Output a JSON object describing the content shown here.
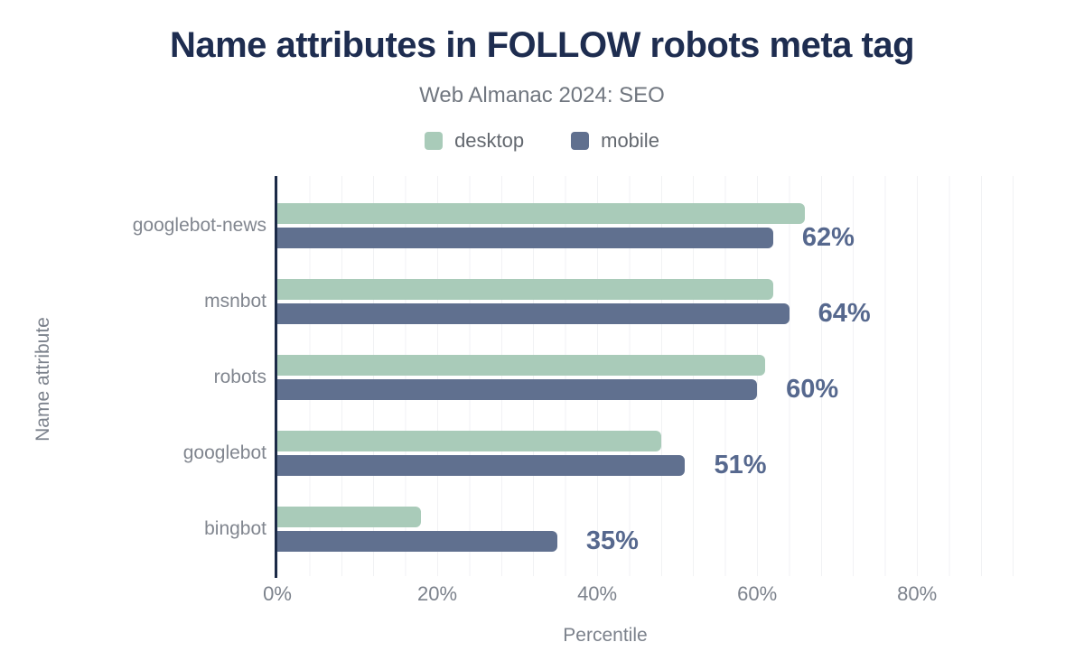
{
  "header": {
    "title": "Name attributes in FOLLOW robots meta tag",
    "subtitle": "Web Almanac 2024: SEO"
  },
  "chart_data": {
    "type": "bar",
    "orientation": "horizontal",
    "title": "Name attributes in FOLLOW robots meta tag",
    "subtitle": "Web Almanac 2024: SEO",
    "categories": [
      "googlebot-news",
      "msnbot",
      "robots",
      "googlebot",
      "bingbot"
    ],
    "series": [
      {
        "name": "desktop",
        "color": "#a9cbb9",
        "values": [
          66,
          62,
          61,
          48,
          18
        ]
      },
      {
        "name": "mobile",
        "color": "#60708f",
        "values": [
          62,
          64,
          60,
          51,
          35
        ]
      }
    ],
    "value_labels": [
      "62%",
      "64%",
      "60%",
      "51%",
      "35%"
    ],
    "value_labels_series": "mobile",
    "xlabel": "Percentile",
    "ylabel": "Name attribute",
    "x_ticks": [
      {
        "value": 0,
        "label": "0%"
      },
      {
        "value": 20,
        "label": "20%"
      },
      {
        "value": 40,
        "label": "40%"
      },
      {
        "value": 60,
        "label": "60%"
      },
      {
        "value": 80,
        "label": "80%"
      }
    ],
    "xlim": [
      0,
      95
    ],
    "grid": "vertical minor gridlines every 4%",
    "legend_position": "top"
  },
  "colors": {
    "title": "#1e2d50",
    "desktop_bar": "#a9cbb9",
    "mobile_bar": "#60708f",
    "value_label": "#56688e",
    "axis_line": "#1b2a47",
    "muted_text": "#7c828c",
    "gridline": "#f1f2f4",
    "background": "#ffffff"
  }
}
